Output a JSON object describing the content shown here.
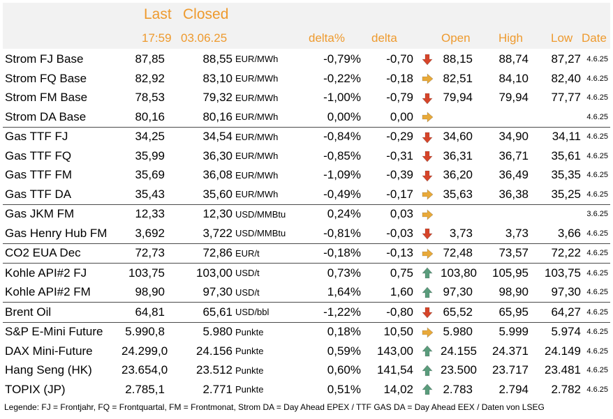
{
  "header": {
    "last_label": "Last",
    "closed_label": "Closed",
    "last_time": "17:59",
    "closed_date": "03.06.25",
    "delta_pct_label": "delta%",
    "delta_label": "delta",
    "open_label": "Open",
    "high_label": "High",
    "low_label": "Low",
    "date_label": "Date"
  },
  "colors": {
    "header_text": "#ee9a2e",
    "arrow_down": "#d6452a",
    "arrow_flat": "#e8a93a",
    "arrow_up": "#5a9c7c",
    "header_bg": "#f2f2f2"
  },
  "rows": [
    {
      "name": "Strom FJ Base",
      "last": "87,85",
      "closed": "88,55",
      "unit": "EUR/MWh",
      "delta_pct": "-0,79%",
      "delta": "-0,70",
      "trend": "down",
      "open": "88,15",
      "high": "88,74",
      "low": "87,27",
      "date": "4.6.25"
    },
    {
      "name": "Strom FQ Base",
      "last": "82,92",
      "closed": "83,10",
      "unit": "EUR/MWh",
      "delta_pct": "-0,22%",
      "delta": "-0,18",
      "trend": "flat",
      "open": "82,51",
      "high": "84,10",
      "low": "82,40",
      "date": "4.6.25"
    },
    {
      "name": "Strom FM Base",
      "last": "78,53",
      "closed": "79,32",
      "unit": "EUR/MWh",
      "delta_pct": "-1,00%",
      "delta": "-0,79",
      "trend": "down",
      "open": "79,94",
      "high": "79,94",
      "low": "77,77",
      "date": "4.6.25"
    },
    {
      "name": "Strom DA Base",
      "last": "80,16",
      "closed": "80,16",
      "unit": "EUR/MWh",
      "delta_pct": "0,00%",
      "delta": "0,00",
      "trend": "flat",
      "open": "",
      "high": "",
      "low": "",
      "date": "4.6.25"
    },
    {
      "name": "Gas TTF FJ",
      "last": "34,25",
      "closed": "34,54",
      "unit": "EUR/MWh",
      "delta_pct": "-0,84%",
      "delta": "-0,29",
      "trend": "down",
      "open": "34,60",
      "high": "34,90",
      "low": "34,11",
      "date": "4.6.25",
      "sep": true
    },
    {
      "name": "Gas TTF FQ",
      "last": "35,99",
      "closed": "36,30",
      "unit": "EUR/MWh",
      "delta_pct": "-0,85%",
      "delta": "-0,31",
      "trend": "down",
      "open": "36,31",
      "high": "36,71",
      "low": "35,61",
      "date": "4.6.25"
    },
    {
      "name": "Gas TTF FM",
      "last": "35,69",
      "closed": "36,08",
      "unit": "EUR/MWh",
      "delta_pct": "-1,09%",
      "delta": "-0,39",
      "trend": "down",
      "open": "36,20",
      "high": "36,49",
      "low": "35,35",
      "date": "4.6.25"
    },
    {
      "name": "Gas TTF DA",
      "last": "35,43",
      "closed": "35,60",
      "unit": "EUR/MWh",
      "delta_pct": "-0,49%",
      "delta": "-0,17",
      "trend": "flat",
      "open": "35,63",
      "high": "36,38",
      "low": "35,25",
      "date": "4.6.25"
    },
    {
      "name": "Gas JKM FM",
      "last": "12,33",
      "closed": "12,30",
      "unit": "USD/MMBtu",
      "delta_pct": "0,24%",
      "delta": "0,03",
      "trend": "flat",
      "open": "",
      "high": "",
      "low": "",
      "date": "3.6.25",
      "sep": true
    },
    {
      "name": "Gas Henry Hub FM",
      "last": "3,692",
      "closed": "3,722",
      "unit": "USD/MMBtu",
      "delta_pct": "-0,81%",
      "delta": "-0,03",
      "trend": "down",
      "open": "3,73",
      "high": "3,73",
      "low": "3,66",
      "date": "4.6.25"
    },
    {
      "name": "CO2 EUA Dec",
      "last": "72,73",
      "closed": "72,86",
      "unit": "EUR/t",
      "delta_pct": "-0,18%",
      "delta": "-0,13",
      "trend": "flat",
      "open": "72,48",
      "high": "73,57",
      "low": "72,22",
      "date": "4.6.25",
      "sep": true
    },
    {
      "name": "Kohle API#2 FJ",
      "last": "103,75",
      "closed": "103,00",
      "unit": "USD/t",
      "delta_pct": "0,73%",
      "delta": "0,75",
      "trend": "up",
      "open": "103,80",
      "high": "105,95",
      "low": "103,75",
      "date": "4.6.25",
      "sep": true
    },
    {
      "name": "Kohle API#2 FM",
      "last": "98,90",
      "closed": "97,30",
      "unit": "USD/t",
      "delta_pct": "1,64%",
      "delta": "1,60",
      "trend": "up",
      "open": "97,30",
      "high": "98,90",
      "low": "97,30",
      "date": "4.6.25"
    },
    {
      "name": "Brent Oil",
      "last": "64,81",
      "closed": "65,61",
      "unit": "USD/bbl",
      "delta_pct": "-1,22%",
      "delta": "-0,80",
      "trend": "down",
      "open": "65,52",
      "high": "65,95",
      "low": "64,27",
      "date": "4.6.25",
      "sep": true
    },
    {
      "name": "S&P E-Mini Future",
      "last": "5.990,8",
      "closed": "5.980",
      "unit": "Punkte",
      "delta_pct": "0,18%",
      "delta": "10,50",
      "trend": "flat",
      "open": "5.980",
      "high": "5.999",
      "low": "5.974",
      "date": "4.6.25",
      "sep": true
    },
    {
      "name": "DAX Mini-Future",
      "last": "24.299,0",
      "closed": "24.156",
      "unit": "Punkte",
      "delta_pct": "0,59%",
      "delta": "143,00",
      "trend": "up",
      "open": "24.155",
      "high": "24.371",
      "low": "24.149",
      "date": "4.6.25"
    },
    {
      "name": "Hang Seng (HK)",
      "last": "23.654,0",
      "closed": "23.512",
      "unit": "Punkte",
      "delta_pct": "0,60%",
      "delta": "141,54",
      "trend": "up",
      "open": "23.500",
      "high": "23.717",
      "low": "23.481",
      "date": "4.6.25"
    },
    {
      "name": "TOPIX (JP)",
      "last": "2.785,1",
      "closed": "2.771",
      "unit": "Punkte",
      "delta_pct": "0,51%",
      "delta": "14,02",
      "trend": "up",
      "open": "2.783",
      "high": "2.794",
      "low": "2.782",
      "date": "4.6.25"
    }
  ],
  "legend": "Legende: FJ = Frontjahr, FQ = Frontquartal, FM = Frontmonat, Strom DA = Day Ahead EPEX / TTF GAS DA = Day Ahead EEX / Daten von LSEG"
}
